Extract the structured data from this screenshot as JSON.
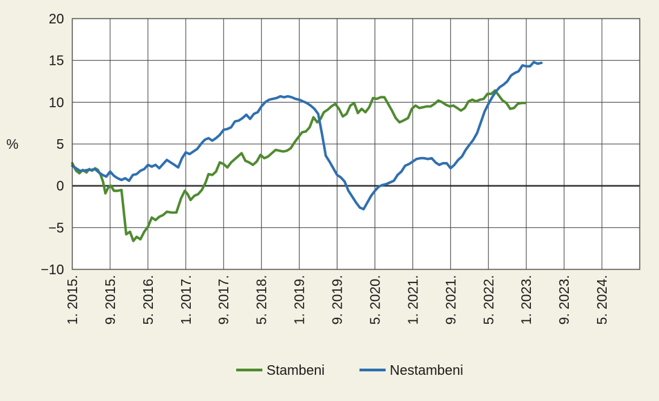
{
  "chart_data": {
    "type": "line",
    "ylabel": "%",
    "ylim": [
      -10,
      20
    ],
    "yticks": [
      -10,
      -5,
      0,
      5,
      10,
      15,
      20
    ],
    "xlim": [
      0,
      120
    ],
    "xticks": [
      {
        "x": 0,
        "label": "1. 2015."
      },
      {
        "x": 8,
        "label": "9. 2015."
      },
      {
        "x": 16,
        "label": "5. 2016."
      },
      {
        "x": 24,
        "label": "1. 2017."
      },
      {
        "x": 32,
        "label": "9. 2017."
      },
      {
        "x": 40,
        "label": "5. 2018."
      },
      {
        "x": 48,
        "label": "1. 2019."
      },
      {
        "x": 56,
        "label": "9. 2019."
      },
      {
        "x": 64,
        "label": "5. 2020."
      },
      {
        "x": 72,
        "label": "1. 2021."
      },
      {
        "x": 80,
        "label": "9. 2021."
      },
      {
        "x": 88,
        "label": "5. 2022."
      },
      {
        "x": 96,
        "label": "1. 2023."
      },
      {
        "x": 104,
        "label": "9. 2023."
      },
      {
        "x": 112,
        "label": "5. 2024."
      }
    ],
    "grid": true,
    "legend_position": "bottom",
    "series": [
      {
        "name": "Stambeni",
        "color": "#4f8a2f",
        "points": [
          [
            0,
            2.7
          ],
          [
            0.8,
            1.8
          ],
          [
            1.5,
            1.5
          ],
          [
            2.2,
            1.9
          ],
          [
            3,
            1.6
          ],
          [
            3.6,
            2.0
          ],
          [
            4.2,
            1.8
          ],
          [
            4.8,
            2.1
          ],
          [
            5.4,
            1.9
          ],
          [
            6,
            1.3
          ],
          [
            6.5,
            0.5
          ],
          [
            7,
            -0.9
          ],
          [
            7.6,
            -0.2
          ],
          [
            8.2,
            0
          ],
          [
            8.8,
            -0.6
          ],
          [
            9.6,
            -0.6
          ],
          [
            10.4,
            -0.5
          ],
          [
            11.4,
            -5.8
          ],
          [
            12.2,
            -5.5
          ],
          [
            12.9,
            -6.6
          ],
          [
            13.6,
            -6.1
          ],
          [
            14.4,
            -6.4
          ],
          [
            15.2,
            -5.5
          ],
          [
            16,
            -4.9
          ],
          [
            16.8,
            -3.8
          ],
          [
            17.6,
            -4.1
          ],
          [
            18.4,
            -3.7
          ],
          [
            19.2,
            -3.5
          ],
          [
            20,
            -3.1
          ],
          [
            21,
            -3.2
          ],
          [
            22,
            -3.2
          ],
          [
            23,
            -1.5
          ],
          [
            23.8,
            -0.6
          ],
          [
            24.4,
            -1.0
          ],
          [
            25,
            -1.7
          ],
          [
            25.8,
            -1.2
          ],
          [
            26.6,
            -1.0
          ],
          [
            27.4,
            -0.5
          ],
          [
            28.2,
            0.4
          ],
          [
            28.8,
            1.4
          ],
          [
            29.6,
            1.3
          ],
          [
            30.4,
            1.7
          ],
          [
            31.2,
            2.8
          ],
          [
            32,
            2.6
          ],
          [
            32.8,
            2.2
          ],
          [
            33.6,
            2.8
          ],
          [
            34.4,
            3.2
          ],
          [
            35.2,
            3.6
          ],
          [
            35.8,
            3.9
          ],
          [
            36.6,
            3.0
          ],
          [
            37.4,
            2.8
          ],
          [
            38.2,
            2.5
          ],
          [
            39,
            2.9
          ],
          [
            39.8,
            3.7
          ],
          [
            40.6,
            3.3
          ],
          [
            41.4,
            3.5
          ],
          [
            42.2,
            3.9
          ],
          [
            43,
            4.3
          ],
          [
            43.8,
            4.2
          ],
          [
            44.6,
            4.1
          ],
          [
            45.4,
            4.2
          ],
          [
            46.2,
            4.5
          ],
          [
            47,
            5.2
          ],
          [
            47.8,
            5.8
          ],
          [
            48.6,
            6.4
          ],
          [
            49.4,
            6.5
          ],
          [
            50.2,
            7.0
          ],
          [
            51,
            8.2
          ],
          [
            51.8,
            7.6
          ],
          [
            52.5,
            8.0
          ],
          [
            53.2,
            8.8
          ],
          [
            54,
            9.1
          ],
          [
            54.8,
            9.5
          ],
          [
            55.6,
            9.8
          ],
          [
            56.4,
            9.2
          ],
          [
            57.2,
            8.3
          ],
          [
            58,
            8.6
          ],
          [
            58.8,
            9.6
          ],
          [
            59.6,
            9.9
          ],
          [
            60.4,
            8.7
          ],
          [
            61.2,
            9.2
          ],
          [
            62,
            8.8
          ],
          [
            62.8,
            9.4
          ],
          [
            63.6,
            10.5
          ],
          [
            64.4,
            10.4
          ],
          [
            65.2,
            10.6
          ],
          [
            66,
            10.6
          ],
          [
            66.8,
            9.8
          ],
          [
            67.6,
            9.0
          ],
          [
            68.4,
            8.1
          ],
          [
            69.2,
            7.6
          ],
          [
            70,
            7.8
          ],
          [
            71,
            8.1
          ],
          [
            71.8,
            9.2
          ],
          [
            72.6,
            9.6
          ],
          [
            73.4,
            9.3
          ],
          [
            74.2,
            9.4
          ],
          [
            75,
            9.5
          ],
          [
            75.8,
            9.5
          ],
          [
            76.6,
            9.8
          ],
          [
            77.4,
            10.2
          ],
          [
            78.2,
            10.0
          ],
          [
            79,
            9.7
          ],
          [
            79.8,
            9.5
          ],
          [
            80.6,
            9.6
          ],
          [
            81.4,
            9.3
          ],
          [
            82.2,
            9.0
          ],
          [
            83,
            9.3
          ],
          [
            83.8,
            10.1
          ],
          [
            84.6,
            10.3
          ],
          [
            85.4,
            10.1
          ],
          [
            86.2,
            10.3
          ],
          [
            87,
            10.4
          ],
          [
            87.8,
            11.0
          ],
          [
            88.6,
            11.0
          ],
          [
            89.4,
            11.4
          ],
          [
            90.2,
            10.8
          ],
          [
            91,
            10.2
          ],
          [
            91.8,
            9.9
          ],
          [
            92.6,
            9.2
          ],
          [
            93.4,
            9.3
          ],
          [
            94.2,
            9.8
          ],
          [
            95,
            9.9
          ],
          [
            95.8,
            9.9
          ]
        ]
      },
      {
        "name": "Nestambeni",
        "color": "#2f6fb0",
        "points": [
          [
            0,
            2.4
          ],
          [
            0.8,
            2.1
          ],
          [
            1.6,
            1.8
          ],
          [
            2.4,
            1.8
          ],
          [
            3.2,
            1.9
          ],
          [
            4,
            1.9
          ],
          [
            4.8,
            2.0
          ],
          [
            5.6,
            1.6
          ],
          [
            6.4,
            1.3
          ],
          [
            7.2,
            1.1
          ],
          [
            8,
            1.7
          ],
          [
            8.8,
            1.2
          ],
          [
            9.6,
            0.9
          ],
          [
            10.4,
            0.7
          ],
          [
            11.2,
            0.9
          ],
          [
            12,
            0.6
          ],
          [
            12.8,
            1.3
          ],
          [
            13.6,
            1.4
          ],
          [
            14.4,
            1.8
          ],
          [
            15.2,
            2.0
          ],
          [
            16,
            2.5
          ],
          [
            16.8,
            2.3
          ],
          [
            17.6,
            2.5
          ],
          [
            18.4,
            2.1
          ],
          [
            19.2,
            2.6
          ],
          [
            20,
            3.1
          ],
          [
            20.8,
            2.8
          ],
          [
            21.6,
            2.5
          ],
          [
            22.4,
            2.2
          ],
          [
            23.2,
            3.3
          ],
          [
            24,
            4.0
          ],
          [
            24.8,
            3.8
          ],
          [
            25.6,
            4.1
          ],
          [
            26.4,
            4.4
          ],
          [
            27.2,
            5.0
          ],
          [
            28,
            5.5
          ],
          [
            28.8,
            5.7
          ],
          [
            29.6,
            5.4
          ],
          [
            30.4,
            5.7
          ],
          [
            31.2,
            6.1
          ],
          [
            32,
            6.7
          ],
          [
            32.8,
            6.8
          ],
          [
            33.6,
            7.0
          ],
          [
            34.4,
            7.7
          ],
          [
            35.2,
            7.8
          ],
          [
            36,
            8.1
          ],
          [
            36.8,
            8.5
          ],
          [
            37.6,
            8.0
          ],
          [
            38.4,
            8.6
          ],
          [
            39.2,
            8.8
          ],
          [
            40,
            9.5
          ],
          [
            40.8,
            10.0
          ],
          [
            41.6,
            10.3
          ],
          [
            42.4,
            10.4
          ],
          [
            43.2,
            10.5
          ],
          [
            44,
            10.7
          ],
          [
            44.8,
            10.6
          ],
          [
            45.6,
            10.7
          ],
          [
            46.4,
            10.6
          ],
          [
            47.2,
            10.4
          ],
          [
            48,
            10.3
          ],
          [
            48.8,
            10.1
          ],
          [
            49.6,
            9.9
          ],
          [
            50.4,
            9.6
          ],
          [
            51.2,
            9.2
          ],
          [
            52,
            8.6
          ],
          [
            52.8,
            6.2
          ],
          [
            53.6,
            3.6
          ],
          [
            54.4,
            2.9
          ],
          [
            55.2,
            2.1
          ],
          [
            56,
            1.3
          ],
          [
            56.8,
            1.0
          ],
          [
            57.6,
            0.5
          ],
          [
            58.4,
            -0.6
          ],
          [
            59.2,
            -1.3
          ],
          [
            60,
            -2.0
          ],
          [
            60.8,
            -2.6
          ],
          [
            61.6,
            -2.8
          ],
          [
            62.4,
            -2.0
          ],
          [
            63.2,
            -1.2
          ],
          [
            64,
            -0.6
          ],
          [
            64.8,
            -0.1
          ],
          [
            65.6,
            0.1
          ],
          [
            66.4,
            0.2
          ],
          [
            67.2,
            0.4
          ],
          [
            68,
            0.6
          ],
          [
            68.8,
            1.3
          ],
          [
            69.6,
            1.7
          ],
          [
            70.4,
            2.4
          ],
          [
            71.2,
            2.6
          ],
          [
            72,
            2.9
          ],
          [
            72.8,
            3.2
          ],
          [
            73.6,
            3.3
          ],
          [
            74.4,
            3.3
          ],
          [
            75.2,
            3.2
          ],
          [
            76,
            3.3
          ],
          [
            76.8,
            2.8
          ],
          [
            77.6,
            2.5
          ],
          [
            78.4,
            2.7
          ],
          [
            79.2,
            2.7
          ],
          [
            80,
            2.1
          ],
          [
            80.8,
            2.5
          ],
          [
            81.6,
            3.1
          ],
          [
            82.4,
            3.5
          ],
          [
            83.2,
            4.3
          ],
          [
            84,
            4.9
          ],
          [
            84.8,
            5.5
          ],
          [
            85.6,
            6.3
          ],
          [
            86.4,
            7.6
          ],
          [
            87.2,
            8.9
          ],
          [
            88,
            9.8
          ],
          [
            88.8,
            10.6
          ],
          [
            89.6,
            11.3
          ],
          [
            90.4,
            11.8
          ],
          [
            91.2,
            12.1
          ],
          [
            92,
            12.5
          ],
          [
            92.8,
            13.2
          ],
          [
            93.6,
            13.5
          ],
          [
            94.4,
            13.7
          ],
          [
            95.2,
            14.4
          ],
          [
            96,
            14.3
          ],
          [
            96.8,
            14.3
          ],
          [
            97.6,
            14.8
          ],
          [
            98.4,
            14.6
          ],
          [
            99.2,
            14.7
          ]
        ]
      }
    ]
  }
}
